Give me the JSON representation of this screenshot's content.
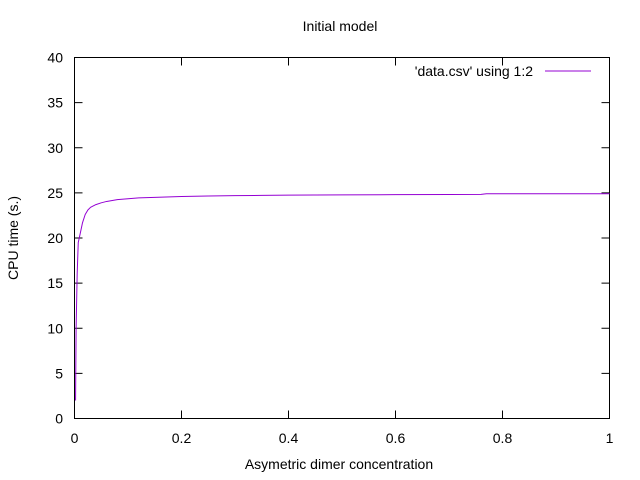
{
  "chart_data": {
    "type": "line",
    "title": "Initial model",
    "xlabel": "Asymetric dimer concentration",
    "ylabel": "CPU time (s.)",
    "xlim": [
      0,
      1
    ],
    "ylim": [
      0,
      40
    ],
    "xticks": [
      0,
      0.2,
      0.4,
      0.6,
      0.8,
      1
    ],
    "yticks": [
      0,
      5,
      10,
      15,
      20,
      25,
      30,
      35,
      40
    ],
    "xtick_labels": [
      "0",
      "0.2",
      "0.4",
      "0.6",
      "0.8",
      "1"
    ],
    "ytick_labels": [
      "0",
      "5",
      "10",
      "15",
      "20",
      "25",
      "30",
      "35",
      "40"
    ],
    "grid": false,
    "legend_position": "top-right",
    "series": [
      {
        "name": "'data.csv' using 1:2",
        "color": "#9400d3",
        "x": [
          0.002,
          0.003,
          0.005,
          0.007,
          0.01,
          0.015,
          0.02,
          0.025,
          0.03,
          0.04,
          0.05,
          0.06,
          0.08,
          0.1,
          0.12,
          0.15,
          0.2,
          0.25,
          0.3,
          0.35,
          0.4,
          0.5,
          0.6,
          0.7,
          0.76,
          0.77,
          0.8,
          0.9,
          1.0
        ],
        "y": [
          2.0,
          10.0,
          16.0,
          19.5,
          20.3,
          21.7,
          22.6,
          23.1,
          23.4,
          23.7,
          23.9,
          24.05,
          24.25,
          24.35,
          24.45,
          24.5,
          24.6,
          24.65,
          24.7,
          24.72,
          24.75,
          24.78,
          24.8,
          24.82,
          24.83,
          24.9,
          24.9,
          24.9,
          24.9
        ]
      }
    ]
  }
}
